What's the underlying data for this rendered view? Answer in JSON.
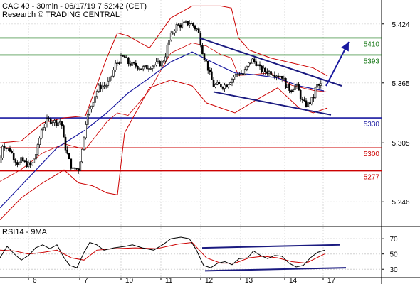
{
  "header": {
    "line1": "CAC 40 - 30min - 06/17/19 7:52:42 (CET)",
    "line2": "Research © TRADING CENTRAL"
  },
  "colors": {
    "candle": "#000000",
    "bollinger": "#cc0000",
    "moving_average": "#1a1aa0",
    "resistance": "#1a7a1a",
    "support_blue": "#1a1aa0",
    "support_red": "#cc0000",
    "trend": "#1a1a80",
    "arrow": "#1a1aa0",
    "rsi": "#000000",
    "rsi_ma": "#cc0000"
  },
  "chart_data": [
    {
      "type": "candlestick",
      "ylim": [
        5222,
        5448
      ],
      "yticks": [
        5246,
        5305,
        5365,
        5424
      ],
      "ytick_labels": [
        "5,246",
        "5,305",
        "5,365",
        "5,424"
      ],
      "x_days": [
        "6",
        "7",
        "10",
        "11",
        "12",
        "13",
        "14",
        "17"
      ],
      "levels": [
        {
          "label": "5410",
          "value": 5410,
          "color": "#1a7a1a"
        },
        {
          "label": "5393",
          "value": 5393,
          "color": "#1a7a1a"
        },
        {
          "label": "5330",
          "value": 5330,
          "color": "#1a1aa0"
        },
        {
          "label": "5300",
          "value": 5300,
          "color": "#cc0000"
        },
        {
          "label": "5277",
          "value": 5277,
          "color": "#cc0000"
        }
      ],
      "price_path": [
        [
          0,
          5285
        ],
        [
          4,
          5305
        ],
        [
          8,
          5300
        ],
        [
          14,
          5298
        ],
        [
          20,
          5290
        ],
        [
          26,
          5283
        ],
        [
          30,
          5288
        ],
        [
          36,
          5284
        ],
        [
          44,
          5282
        ],
        [
          52,
          5297
        ],
        [
          58,
          5318
        ],
        [
          63,
          5325
        ],
        [
          68,
          5328
        ],
        [
          74,
          5327
        ],
        [
          80,
          5325
        ],
        [
          86,
          5327
        ],
        [
          90,
          5305
        ],
        [
          94,
          5295
        ],
        [
          98,
          5285
        ],
        [
          102,
          5278
        ],
        [
          106,
          5280
        ],
        [
          110,
          5278
        ],
        [
          116,
          5300
        ],
        [
          120,
          5325
        ],
        [
          126,
          5338
        ],
        [
          132,
          5350
        ],
        [
          138,
          5360
        ],
        [
          144,
          5362
        ],
        [
          150,
          5363
        ],
        [
          156,
          5370
        ],
        [
          162,
          5383
        ],
        [
          168,
          5388
        ],
        [
          174,
          5392
        ],
        [
          180,
          5385
        ],
        [
          186,
          5383
        ],
        [
          192,
          5382
        ],
        [
          198,
          5380
        ],
        [
          204,
          5380
        ],
        [
          210,
          5382
        ],
        [
          216,
          5383
        ],
        [
          222,
          5384
        ],
        [
          228,
          5385
        ],
        [
          232,
          5392
        ],
        [
          236,
          5404
        ],
        [
          240,
          5412
        ],
        [
          244,
          5418
        ],
        [
          248,
          5422
        ],
        [
          254,
          5423
        ],
        [
          260,
          5424
        ],
        [
          266,
          5425
        ],
        [
          270,
          5424
        ],
        [
          274,
          5420
        ],
        [
          278,
          5418
        ],
        [
          282,
          5405
        ],
        [
          286,
          5392
        ],
        [
          290,
          5385
        ],
        [
          294,
          5375
        ],
        [
          300,
          5362
        ],
        [
          306,
          5363
        ],
        [
          312,
          5362
        ],
        [
          318,
          5363
        ],
        [
          324,
          5368
        ],
        [
          330,
          5372
        ],
        [
          336,
          5375
        ],
        [
          342,
          5374
        ],
        [
          348,
          5382
        ],
        [
          354,
          5388
        ],
        [
          360,
          5385
        ],
        [
          366,
          5378
        ],
        [
          372,
          5377
        ],
        [
          378,
          5376
        ],
        [
          384,
          5375
        ],
        [
          390,
          5373
        ],
        [
          396,
          5372
        ],
        [
          402,
          5362
        ],
        [
          408,
          5358
        ],
        [
          414,
          5362
        ],
        [
          418,
          5360
        ],
        [
          424,
          5347
        ],
        [
          428,
          5344
        ],
        [
          432,
          5343
        ],
        [
          436,
          5346
        ],
        [
          440,
          5350
        ],
        [
          444,
          5362
        ],
        [
          448,
          5362
        ],
        [
          452,
          5363
        ]
      ],
      "moving_average": [
        [
          0,
          5240
        ],
        [
          40,
          5270
        ],
        [
          80,
          5300
        ],
        [
          120,
          5318
        ],
        [
          150,
          5335
        ],
        [
          180,
          5355
        ],
        [
          210,
          5370
        ],
        [
          240,
          5386
        ],
        [
          270,
          5396
        ],
        [
          300,
          5385
        ],
        [
          330,
          5375
        ],
        [
          360,
          5373
        ],
        [
          390,
          5370
        ],
        [
          420,
          5362
        ],
        [
          455,
          5357
        ]
      ],
      "bollinger_upper": [
        [
          0,
          5305
        ],
        [
          30,
          5307
        ],
        [
          60,
          5325
        ],
        [
          90,
          5330
        ],
        [
          120,
          5332
        ],
        [
          150,
          5390
        ],
        [
          165,
          5415
        ],
        [
          180,
          5412
        ],
        [
          210,
          5400
        ],
        [
          240,
          5430
        ],
        [
          270,
          5442
        ],
        [
          290,
          5442
        ],
        [
          310,
          5442
        ],
        [
          325,
          5440
        ],
        [
          335,
          5410
        ],
        [
          350,
          5398
        ],
        [
          380,
          5390
        ],
        [
          410,
          5385
        ],
        [
          440,
          5380
        ],
        [
          460,
          5372
        ]
      ],
      "bollinger_lower": [
        [
          0,
          5228
        ],
        [
          30,
          5250
        ],
        [
          60,
          5265
        ],
        [
          90,
          5278
        ],
        [
          110,
          5265
        ],
        [
          130,
          5262
        ],
        [
          150,
          5255
        ],
        [
          165,
          5253
        ],
        [
          175,
          5315
        ],
        [
          210,
          5360
        ],
        [
          240,
          5368
        ],
        [
          270,
          5362
        ],
        [
          290,
          5345
        ],
        [
          310,
          5340
        ],
        [
          330,
          5335
        ],
        [
          360,
          5348
        ],
        [
          390,
          5360
        ],
        [
          420,
          5340
        ],
        [
          440,
          5335
        ],
        [
          460,
          5340
        ]
      ],
      "trend_lines": [
        {
          "from": [
            280,
            5410
          ],
          "to": [
            480,
            5362
          ]
        },
        {
          "from": [
            300,
            5356
          ],
          "to": [
            465,
            5333
          ]
        }
      ],
      "arrow": {
        "from": [
          458,
          5362
        ],
        "to": [
          490,
          5406
        ]
      }
    },
    {
      "type": "line",
      "title": "RSI14 - 9MA",
      "ylim": [
        20,
        85
      ],
      "yticks": [
        30,
        50,
        70
      ],
      "ytick_labels": [
        "30",
        "50",
        "70"
      ],
      "series": [
        {
          "values": [
            [
              0,
              45
            ],
            [
              10,
              60
            ],
            [
              20,
              50
            ],
            [
              30,
              42
            ],
            [
              40,
              48
            ],
            [
              50,
              58
            ],
            [
              60,
              62
            ],
            [
              70,
              57
            ],
            [
              80,
              62
            ],
            [
              90,
              45
            ],
            [
              98,
              35
            ],
            [
              108,
              32
            ],
            [
              118,
              52
            ],
            [
              126,
              65
            ],
            [
              136,
              62
            ],
            [
              146,
              55
            ],
            [
              160,
              58
            ],
            [
              176,
              60
            ],
            [
              186,
              62
            ],
            [
              200,
              58
            ],
            [
              216,
              55
            ],
            [
              230,
              63
            ],
            [
              240,
              70
            ],
            [
              254,
              72
            ],
            [
              266,
              70
            ],
            [
              276,
              55
            ],
            [
              286,
              35
            ],
            [
              296,
              32
            ],
            [
              306,
              38
            ],
            [
              316,
              40
            ],
            [
              326,
              36
            ],
            [
              336,
              44
            ],
            [
              348,
              45
            ],
            [
              356,
              54
            ],
            [
              366,
              48
            ],
            [
              376,
              44
            ],
            [
              386,
              48
            ],
            [
              396,
              47
            ],
            [
              406,
              38
            ],
            [
              416,
              33
            ],
            [
              426,
              35
            ],
            [
              436,
              45
            ],
            [
              446,
              52
            ],
            [
              456,
              55
            ]
          ]
        },
        {
          "values": [
            [
              0,
              55
            ],
            [
              20,
              54
            ],
            [
              40,
              50
            ],
            [
              60,
              52
            ],
            [
              80,
              55
            ],
            [
              100,
              45
            ],
            [
              118,
              42
            ],
            [
              136,
              55
            ],
            [
              160,
              57
            ],
            [
              190,
              58
            ],
            [
              220,
              57
            ],
            [
              250,
              63
            ],
            [
              270,
              65
            ],
            [
              290,
              45
            ],
            [
              310,
              38
            ],
            [
              330,
              38
            ],
            [
              350,
              45
            ],
            [
              370,
              47
            ],
            [
              390,
              45
            ],
            [
              410,
              40
            ],
            [
              430,
              38
            ],
            [
              445,
              45
            ],
            [
              456,
              50
            ]
          ]
        }
      ],
      "trend_lines": [
        {
          "from": [
            284,
            58
          ],
          "to": [
            478,
            62
          ]
        },
        {
          "from": [
            288,
            28
          ],
          "to": [
            486,
            32
          ]
        }
      ]
    }
  ]
}
